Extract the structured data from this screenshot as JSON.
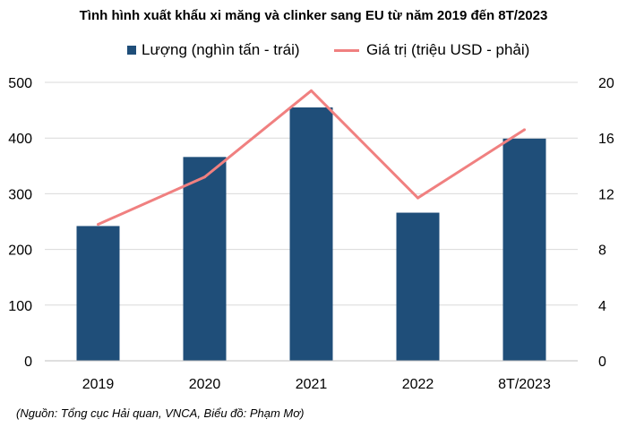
{
  "chart_data": {
    "type": "bar",
    "title": "Tình hình xuất khẩu xi măng và clinker sang EU từ năm 2019 đến 8T/2023",
    "categories": [
      "2019",
      "2020",
      "2021",
      "2022",
      "8T/2023"
    ],
    "series": [
      {
        "name": "Lượng  (nghìn tấn - trái)",
        "type": "bar",
        "axis": "left",
        "color": "#1f4e79",
        "values": [
          242,
          366,
          455,
          266,
          399
        ]
      },
      {
        "name": "Giá trị (triệu USD - phải)",
        "type": "line",
        "axis": "right",
        "color": "#f08080",
        "values": [
          9.8,
          13.2,
          19.4,
          11.7,
          16.6
        ]
      }
    ],
    "y_left": {
      "min": 0,
      "max": 500,
      "ticks": [
        0,
        100,
        200,
        300,
        400,
        500
      ]
    },
    "y_right": {
      "min": 0,
      "max": 20,
      "ticks": [
        0,
        4,
        8,
        12,
        16,
        20
      ]
    },
    "grid": true,
    "legend_position": "top"
  },
  "source_note": "(Nguồn: Tổng cục Hải quan, VNCA, Biểu đồ: Phạm Mơ)"
}
